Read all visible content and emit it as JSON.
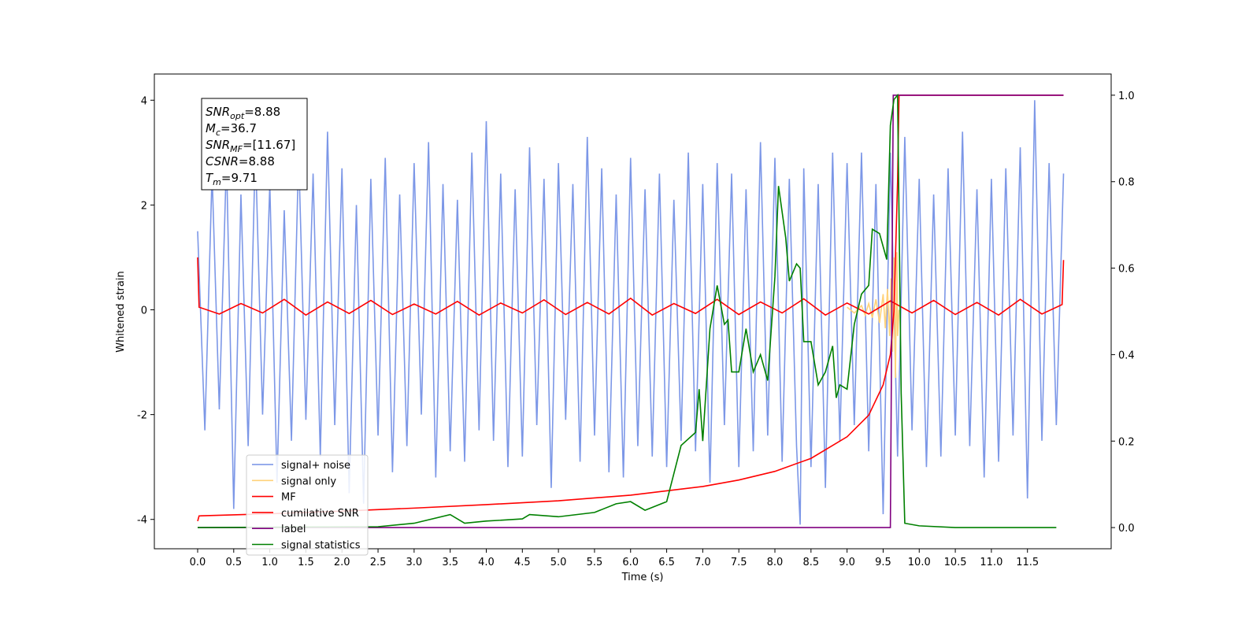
{
  "chart_data": {
    "type": "line",
    "xlabel": "Time (s)",
    "ylabel": "Whitened strain",
    "xlim": [
      -0.6,
      12.66
    ],
    "ylim": [
      -4.56,
      4.5
    ],
    "y2lim": [
      -0.049,
      1.049
    ],
    "xticks": [
      {
        "value": 0,
        "label": "0.0"
      },
      0.5,
      {
        "value": 1,
        "label": "1.0"
      },
      1.5,
      {
        "value": 2,
        "label": "2.0"
      },
      2.5,
      {
        "value": 3,
        "label": "3.0"
      },
      3.5,
      {
        "value": 4,
        "label": "4.0"
      },
      4.5,
      {
        "value": 5,
        "label": "5.0"
      },
      5.5,
      {
        "value": 6,
        "label": "6.0"
      },
      6.5,
      {
        "value": 7,
        "label": "7.0"
      },
      7.5,
      {
        "value": 8,
        "label": "8.0"
      },
      8.5,
      {
        "value": 9,
        "label": "9.0"
      },
      9.5,
      {
        "value": 10,
        "label": "10.0"
      },
      10.5,
      {
        "value": 11,
        "label": "11.0"
      },
      11.5
    ],
    "yticks": [
      -4,
      -2,
      0,
      2,
      4
    ],
    "y2ticks": [
      {
        "value": 0,
        "label": "0.0"
      },
      0.2,
      0.4,
      0.6,
      0.8,
      {
        "value": 1,
        "label": "1.0"
      }
    ],
    "annotation": [
      {
        "base": "SNR",
        "sub": "opt",
        "rest": "=8.88"
      },
      {
        "base": "M",
        "sub": "c",
        "rest": "=36.7"
      },
      {
        "base": "SNR",
        "sub": "MF",
        "rest": "=[11.67]"
      },
      {
        "base": "CSNR",
        "sub": null,
        "rest": "=8.88"
      },
      {
        "base": "T",
        "sub": "m",
        "rest": "=9.71"
      }
    ],
    "series": [
      {
        "name": "signal+ noise",
        "color": "#7591e6",
        "x": [
          0,
          0.1,
          0.2,
          0.3,
          0.4,
          0.5,
          0.6,
          0.7,
          0.8,
          0.9,
          1,
          1.1,
          1.2,
          1.3,
          1.4,
          1.5,
          1.6,
          1.7,
          1.8,
          1.9,
          2,
          2.1,
          2.2,
          2.3,
          2.4,
          2.5,
          2.6,
          2.7,
          2.8,
          2.9,
          3,
          3.1,
          3.2,
          3.3,
          3.4,
          3.5,
          3.6,
          3.7,
          3.8,
          3.9,
          4,
          4.1,
          4.2,
          4.3,
          4.4,
          4.5,
          4.6,
          4.7,
          4.8,
          4.9,
          5,
          5.1,
          5.2,
          5.3,
          5.4,
          5.5,
          5.6,
          5.7,
          5.8,
          5.9,
          6,
          6.1,
          6.2,
          6.3,
          6.4,
          6.5,
          6.6,
          6.7,
          6.8,
          6.9,
          7,
          7.1,
          7.2,
          7.3,
          7.4,
          7.5,
          7.6,
          7.7,
          7.8,
          7.9,
          8,
          8.1,
          8.2,
          8.3,
          8.35,
          8.4,
          8.5,
          8.6,
          8.7,
          8.8,
          8.9,
          9,
          9.1,
          9.2,
          9.3,
          9.4,
          9.5,
          9.6,
          9.7,
          9.8,
          9.9,
          10,
          10.1,
          10.2,
          10.3,
          10.4,
          10.5,
          10.6,
          10.7,
          10.8,
          10.9,
          11,
          11.1,
          11.2,
          11.3,
          11.4,
          11.5,
          11.6,
          11.7,
          11.8,
          11.9,
          12
        ],
        "values": [
          1.5,
          -2.3,
          2.6,
          -1.9,
          2.9,
          -3.8,
          2.2,
          -2.6,
          3.1,
          -2.0,
          2.4,
          -3.3,
          1.9,
          -2.5,
          3.0,
          -2.1,
          2.6,
          -2.8,
          3.4,
          -2.2,
          2.7,
          -3.5,
          2.0,
          -3.7,
          2.5,
          -2.4,
          2.9,
          -3.1,
          2.2,
          -2.6,
          2.8,
          -2.0,
          3.2,
          -3.2,
          2.4,
          -2.7,
          2.1,
          -2.9,
          3.0,
          -2.3,
          3.6,
          -2.5,
          2.6,
          -3.0,
          2.3,
          -2.8,
          3.1,
          -2.2,
          2.5,
          -3.4,
          2.8,
          -2.1,
          2.4,
          -2.9,
          3.3,
          -2.4,
          2.7,
          -3.1,
          2.2,
          -3.2,
          2.9,
          -2.6,
          2.3,
          -2.8,
          2.6,
          -3.0,
          2.1,
          -2.5,
          3.0,
          -2.7,
          2.4,
          -3.3,
          2.8,
          -2.2,
          2.6,
          -3.0,
          2.3,
          -2.7,
          3.2,
          -2.4,
          2.9,
          -2.9,
          2.5,
          -2.6,
          -4.1,
          2.7,
          -3.0,
          2.4,
          -3.4,
          3.0,
          -2.5,
          2.8,
          -2.2,
          3.0,
          -2.7,
          2.4,
          -3.9,
          3.0,
          -2.8,
          3.3,
          -2.3,
          2.5,
          -3.0,
          2.2,
          -2.8,
          2.7,
          -2.4,
          3.4,
          -2.6,
          2.3,
          -3.2,
          2.5,
          -2.9,
          2.7,
          -2.4,
          3.1,
          -3.6,
          4.0,
          -2.5,
          2.8,
          -2.2,
          2.6
        ],
        "axis": "y"
      },
      {
        "name": "signal only",
        "color": "#ffd27a",
        "x": [
          9.0,
          9.1,
          9.2,
          9.25,
          9.3,
          9.35,
          9.4,
          9.45,
          9.5,
          9.53,
          9.56,
          9.59,
          9.61,
          9.63,
          9.65,
          9.67,
          9.69,
          9.7,
          9.72
        ],
        "values": [
          0.05,
          -0.06,
          0.08,
          -0.1,
          0.12,
          -0.15,
          0.2,
          -0.25,
          0.3,
          -0.35,
          0.4,
          -0.5,
          0.6,
          -0.8,
          1.0,
          -1.3,
          1.1,
          -0.5,
          0
        ],
        "axis": "y"
      },
      {
        "name": "MF",
        "color": "#ff0000",
        "x": [
          0,
          0.02,
          0.3,
          0.6,
          0.9,
          1.2,
          1.5,
          1.8,
          2.1,
          2.4,
          2.7,
          3,
          3.3,
          3.6,
          3.9,
          4.2,
          4.5,
          4.8,
          5.1,
          5.4,
          5.7,
          6,
          6.3,
          6.6,
          6.9,
          7.2,
          7.5,
          7.8,
          8.1,
          8.4,
          8.7,
          9,
          9.3,
          9.6,
          9.9,
          10.2,
          10.5,
          10.8,
          11.1,
          11.4,
          11.7,
          11.98,
          12
        ],
        "values": [
          1.0,
          0.05,
          -0.08,
          0.12,
          -0.06,
          0.2,
          -0.1,
          0.15,
          -0.07,
          0.18,
          -0.09,
          0.11,
          -0.08,
          0.16,
          -0.1,
          0.13,
          -0.06,
          0.19,
          -0.09,
          0.14,
          -0.08,
          0.22,
          -0.1,
          0.12,
          -0.07,
          0.2,
          -0.09,
          0.15,
          -0.06,
          0.21,
          -0.1,
          0.13,
          -0.08,
          0.17,
          -0.06,
          0.18,
          -0.09,
          0.14,
          -0.1,
          0.2,
          -0.08,
          0.1,
          0.95
        ],
        "axis": "y"
      },
      {
        "name": "cumilative SNR",
        "color": "#ff0000",
        "x": [
          0,
          0.02,
          1,
          2,
          3,
          4,
          5,
          6,
          7,
          7.5,
          8,
          8.5,
          9,
          9.3,
          9.5,
          9.6,
          9.65,
          9.7,
          9.72,
          12
        ],
        "values": [
          0.015,
          0.027,
          0.032,
          0.038,
          0.045,
          0.053,
          0.062,
          0.075,
          0.095,
          0.11,
          0.13,
          0.16,
          0.21,
          0.26,
          0.33,
          0.4,
          0.5,
          0.8,
          1.0,
          1.0
        ],
        "axis": "y2"
      },
      {
        "name": "label",
        "color": "#800080",
        "x": [
          0,
          9.6,
          9.64,
          12
        ],
        "values": [
          0,
          0,
          1,
          1
        ],
        "axis": "y2"
      },
      {
        "name": "signal statistics",
        "color": "#008000",
        "x": [
          0,
          2.5,
          3.0,
          3.5,
          3.7,
          4.0,
          4.5,
          4.6,
          5.0,
          5.5,
          5.8,
          6.0,
          6.2,
          6.5,
          6.7,
          6.9,
          6.95,
          7.0,
          7.1,
          7.2,
          7.3,
          7.35,
          7.4,
          7.5,
          7.6,
          7.7,
          7.8,
          7.9,
          8.0,
          8.05,
          8.15,
          8.2,
          8.3,
          8.35,
          8.4,
          8.5,
          8.6,
          8.7,
          8.8,
          8.85,
          8.9,
          9.0,
          9.1,
          9.2,
          9.3,
          9.35,
          9.45,
          9.55,
          9.6,
          9.65,
          9.7,
          9.75,
          9.8,
          10.0,
          10.5,
          11.9
        ],
        "values": [
          0,
          0.002,
          0.01,
          0.03,
          0.01,
          0.015,
          0.02,
          0.03,
          0.025,
          0.035,
          0.055,
          0.06,
          0.04,
          0.06,
          0.19,
          0.22,
          0.32,
          0.2,
          0.46,
          0.56,
          0.47,
          0.48,
          0.36,
          0.36,
          0.46,
          0.36,
          0.4,
          0.34,
          0.58,
          0.79,
          0.67,
          0.57,
          0.61,
          0.6,
          0.43,
          0.43,
          0.33,
          0.36,
          0.42,
          0.3,
          0.33,
          0.32,
          0.47,
          0.54,
          0.56,
          0.69,
          0.68,
          0.62,
          0.93,
          0.99,
          1.0,
          0.31,
          0.01,
          0.004,
          0,
          0
        ],
        "axis": "y2"
      }
    ]
  }
}
